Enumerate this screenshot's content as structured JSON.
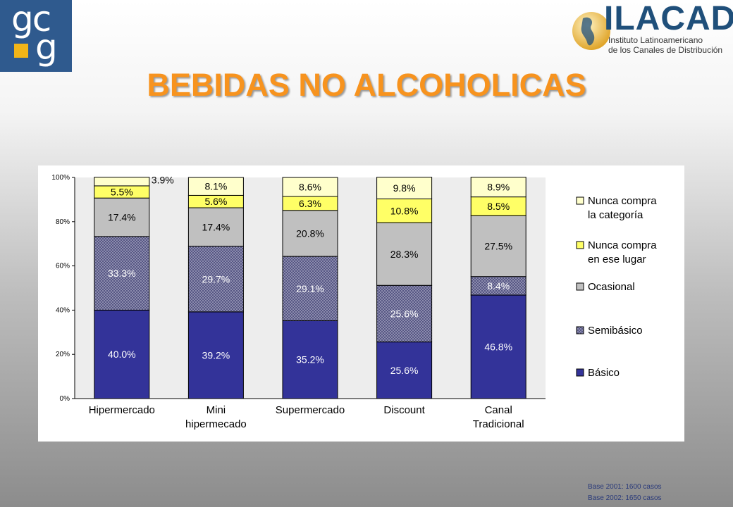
{
  "brand": {
    "gcg_line1": "gc",
    "gcg_line2": "g",
    "ilacad_name": "ILACAD",
    "ilacad_sub1": "Instituto Latinoamericano",
    "ilacad_sub2": "de los Canales de Distribución",
    "gcg_color": "#2f5a8e",
    "gcg_accent": "#f2b518"
  },
  "title": "BEBIDAS NO ALCOHOLICAS",
  "chart_data": {
    "type": "bar",
    "stacked": true,
    "categories": [
      "Hipermercado",
      "Mini hipermecado",
      "Supermercado",
      "Discount",
      "Canal Tradicional"
    ],
    "category_lines": [
      [
        "Hipermercado"
      ],
      [
        "Mini",
        "hipermecado"
      ],
      [
        "Supermercado"
      ],
      [
        "Discount"
      ],
      [
        "Canal",
        "Tradicional"
      ]
    ],
    "series": [
      {
        "name": "Básico",
        "values": [
          40.0,
          39.2,
          35.2,
          25.6,
          46.8
        ],
        "labels": [
          "40.0%",
          "39.2%",
          "35.2%",
          "25.6%",
          "46.8%"
        ],
        "color": "#333399",
        "label_color": "#ffffff"
      },
      {
        "name": "Semibásico",
        "values": [
          33.3,
          29.7,
          29.1,
          25.6,
          8.4
        ],
        "labels": [
          "33.3%",
          "29.7%",
          "29.1%",
          "25.6%",
          "8.4%"
        ],
        "color": "#9a9ab8",
        "label_color": "#ffffff"
      },
      {
        "name": "Ocasional",
        "values": [
          17.4,
          17.4,
          20.8,
          28.3,
          27.5
        ],
        "labels": [
          "17.4%",
          "17.4%",
          "20.8%",
          "28.3%",
          "27.5%"
        ],
        "color": "#c0c0c0",
        "label_color": "#000000"
      },
      {
        "name": "Nunca compra en ese lugar",
        "values": [
          5.5,
          5.6,
          6.3,
          10.8,
          8.5
        ],
        "labels": [
          "5.5%",
          "5.6%",
          "6.3%",
          "10.8%",
          "8.5%"
        ],
        "color": "#ffff66",
        "label_color": "#000000"
      },
      {
        "name": "Nunca compra la categoría",
        "values": [
          3.9,
          8.1,
          8.6,
          9.8,
          8.9
        ],
        "labels": [
          "3.9%",
          "8.1%",
          "8.6%",
          "9.8%",
          "8.9%"
        ],
        "color": "#ffffcc",
        "label_color": "#000000"
      }
    ],
    "legend": [
      {
        "lines": [
          "Nunca compra",
          "la categoría"
        ],
        "color": "#ffffcc"
      },
      {
        "lines": [
          "Nunca compra",
          "en ese lugar"
        ],
        "color": "#ffff66"
      },
      {
        "lines": [
          "Ocasional"
        ],
        "color": "#c0c0c0"
      },
      {
        "lines": [
          "Semibásico"
        ],
        "color": "#9a9ab8"
      },
      {
        "lines": [
          "Básico"
        ],
        "color": "#333399"
      }
    ],
    "y_ticks": [
      "0%",
      "20%",
      "40%",
      "60%",
      "80%",
      "100%"
    ],
    "ylim": [
      0,
      100
    ],
    "legend_position": "right",
    "plot_background": "#ededed"
  },
  "notes": {
    "base_2001": "Base 2001: 1600 casos",
    "base_2002": "Base 2002: 1650 casos"
  }
}
